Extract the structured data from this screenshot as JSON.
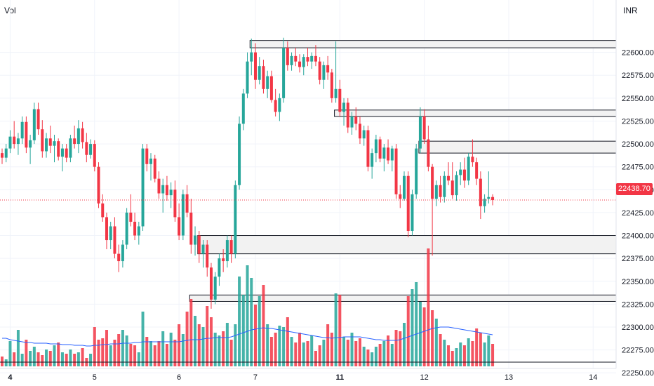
{
  "header": {
    "left_label": "Vol",
    "currency": "INR"
  },
  "last_price": {
    "value": 22438.7,
    "label": "22438.70"
  },
  "chart_data": {
    "type": "candlestick",
    "currency": "INR",
    "y_range": [
      22245,
      22625
    ],
    "y_ticks": [
      22250,
      22275,
      22300,
      22325,
      22350,
      22375,
      22400,
      22425,
      22450,
      22475,
      22500,
      22525,
      22550,
      22575,
      22600
    ],
    "x_ticks": [
      {
        "label": "4",
        "bold": true,
        "index": 2
      },
      {
        "label": "5",
        "bold": false,
        "index": 23
      },
      {
        "label": "6",
        "bold": false,
        "index": 44
      },
      {
        "label": "7",
        "bold": false,
        "index": 63
      },
      {
        "label": "11",
        "bold": true,
        "index": 84
      },
      {
        "label": "12",
        "bold": false,
        "index": 105
      },
      {
        "label": "13",
        "bold": false,
        "index": 126
      },
      {
        "label": "14",
        "bold": false,
        "index": 147
      }
    ],
    "zones": [
      {
        "start_index": 62,
        "low": 22605,
        "high": 22613
      },
      {
        "start_index": 83,
        "low": 22530,
        "high": 22537
      },
      {
        "start_index": 104,
        "low": 22490,
        "high": 22503
      },
      {
        "start_index": 49,
        "low": 22380,
        "high": 22400
      },
      {
        "start_index": 47,
        "low": 22328,
        "high": 22335
      }
    ],
    "candles": [
      [
        22490,
        22495,
        22478,
        22485
      ],
      [
        22485,
        22500,
        22480,
        22495
      ],
      [
        22495,
        22515,
        22490,
        22508
      ],
      [
        22508,
        22525,
        22495,
        22500
      ],
      [
        22500,
        22512,
        22488,
        22506
      ],
      [
        22506,
        22530,
        22500,
        22524
      ],
      [
        22524,
        22530,
        22490,
        22496
      ],
      [
        22496,
        22510,
        22478,
        22504
      ],
      [
        22504,
        22545,
        22500,
        22538
      ],
      [
        22538,
        22545,
        22510,
        22516
      ],
      [
        22516,
        22526,
        22485,
        22492
      ],
      [
        22492,
        22512,
        22485,
        22506
      ],
      [
        22506,
        22520,
        22490,
        22498
      ],
      [
        22498,
        22510,
        22480,
        22503
      ],
      [
        22503,
        22506,
        22482,
        22486
      ],
      [
        22486,
        22500,
        22470,
        22495
      ],
      [
        22495,
        22500,
        22480,
        22485
      ],
      [
        22485,
        22510,
        22480,
        22506
      ],
      [
        22506,
        22520,
        22495,
        22500
      ],
      [
        22500,
        22526,
        22490,
        22517
      ],
      [
        22517,
        22524,
        22495,
        22502
      ],
      [
        22502,
        22512,
        22480,
        22488
      ],
      [
        22488,
        22505,
        22484,
        22500
      ],
      [
        22500,
        22504,
        22470,
        22475
      ],
      [
        22475,
        22480,
        22430,
        22435
      ],
      [
        22435,
        22445,
        22415,
        22420
      ],
      [
        22420,
        22425,
        22385,
        22395
      ],
      [
        22395,
        22415,
        22385,
        22410
      ],
      [
        22410,
        22420,
        22375,
        22380
      ],
      [
        22380,
        22390,
        22360,
        22372
      ],
      [
        22372,
        22395,
        22365,
        22390
      ],
      [
        22390,
        22430,
        22385,
        22425
      ],
      [
        22425,
        22445,
        22410,
        22415
      ],
      [
        22415,
        22425,
        22395,
        22400
      ],
      [
        22400,
        22415,
        22390,
        22410
      ],
      [
        22410,
        22500,
        22405,
        22495
      ],
      [
        22495,
        22500,
        22470,
        22478
      ],
      [
        22478,
        22490,
        22460,
        22484
      ],
      [
        22484,
        22488,
        22458,
        22462
      ],
      [
        22462,
        22470,
        22440,
        22446
      ],
      [
        22446,
        22462,
        22425,
        22455
      ],
      [
        22455,
        22465,
        22438,
        22444
      ],
      [
        22444,
        22458,
        22430,
        22450
      ],
      [
        22450,
        22460,
        22415,
        22420
      ],
      [
        22420,
        22435,
        22395,
        22400
      ],
      [
        22400,
        22450,
        22395,
        22445
      ],
      [
        22445,
        22455,
        22420,
        22425
      ],
      [
        22425,
        22440,
        22380,
        22390
      ],
      [
        22390,
        22410,
        22378,
        22400
      ],
      [
        22400,
        22405,
        22370,
        22380
      ],
      [
        22380,
        22395,
        22365,
        22390
      ],
      [
        22390,
        22395,
        22355,
        22365
      ],
      [
        22365,
        22370,
        22320,
        22330
      ],
      [
        22330,
        22360,
        22325,
        22355
      ],
      [
        22355,
        22380,
        22345,
        22375
      ],
      [
        22375,
        22385,
        22360,
        22372
      ],
      [
        22372,
        22400,
        22365,
        22395
      ],
      [
        22395,
        22400,
        22370,
        22380
      ],
      [
        22380,
        22460,
        22375,
        22455
      ],
      [
        22455,
        22530,
        22450,
        22522
      ],
      [
        22522,
        22560,
        22515,
        22555
      ],
      [
        22555,
        22600,
        22550,
        22590
      ],
      [
        22590,
        22615,
        22575,
        22600
      ],
      [
        22600,
        22610,
        22560,
        22570
      ],
      [
        22570,
        22595,
        22565,
        22585
      ],
      [
        22585,
        22592,
        22555,
        22560
      ],
      [
        22560,
        22580,
        22550,
        22574
      ],
      [
        22574,
        22580,
        22545,
        22548
      ],
      [
        22548,
        22560,
        22530,
        22535
      ],
      [
        22535,
        22555,
        22525,
        22550
      ],
      [
        22550,
        22616,
        22545,
        22605
      ],
      [
        22605,
        22612,
        22580,
        22586
      ],
      [
        22586,
        22600,
        22580,
        22596
      ],
      [
        22596,
        22605,
        22585,
        22590
      ],
      [
        22590,
        22598,
        22578,
        22584
      ],
      [
        22584,
        22598,
        22575,
        22595
      ],
      [
        22595,
        22605,
        22585,
        22590
      ],
      [
        22590,
        22600,
        22582,
        22596
      ],
      [
        22596,
        22608,
        22585,
        22590
      ],
      [
        22590,
        22595,
        22565,
        22570
      ],
      [
        22570,
        22590,
        22560,
        22586
      ],
      [
        22586,
        22596,
        22570,
        22578
      ],
      [
        22578,
        22582,
        22545,
        22550
      ],
      [
        22550,
        22612,
        22545,
        22560
      ],
      [
        22560,
        22570,
        22530,
        22535
      ],
      [
        22535,
        22550,
        22520,
        22545
      ],
      [
        22545,
        22550,
        22512,
        22518
      ],
      [
        22518,
        22535,
        22510,
        22530
      ],
      [
        22530,
        22540,
        22515,
        22522
      ],
      [
        22522,
        22530,
        22500,
        22506
      ],
      [
        22506,
        22520,
        22498,
        22515
      ],
      [
        22515,
        22520,
        22470,
        22475
      ],
      [
        22475,
        22495,
        22462,
        22490
      ],
      [
        22490,
        22510,
        22480,
        22505
      ],
      [
        22505,
        22508,
        22480,
        22484
      ],
      [
        22484,
        22500,
        22470,
        22496
      ],
      [
        22496,
        22505,
        22478,
        22482
      ],
      [
        22482,
        22498,
        22470,
        22495
      ],
      [
        22495,
        22500,
        22440,
        22445
      ],
      [
        22445,
        22455,
        22430,
        22440
      ],
      [
        22440,
        22470,
        22438,
        22465
      ],
      [
        22465,
        22470,
        22398,
        22405
      ],
      [
        22405,
        22450,
        22400,
        22445
      ],
      [
        22445,
        22500,
        22440,
        22495
      ],
      [
        22495,
        22540,
        22490,
        22530
      ],
      [
        22530,
        22538,
        22500,
        22505
      ],
      [
        22505,
        22520,
        22470,
        22475
      ],
      [
        22475,
        22478,
        22378,
        22440
      ],
      [
        22440,
        22460,
        22432,
        22455
      ],
      [
        22455,
        22465,
        22436,
        22442
      ],
      [
        22442,
        22470,
        22436,
        22465
      ],
      [
        22465,
        22480,
        22455,
        22460
      ],
      [
        22460,
        22480,
        22440,
        22444
      ],
      [
        22444,
        22470,
        22438,
        22466
      ],
      [
        22466,
        22480,
        22455,
        22472
      ],
      [
        22472,
        22485,
        22452,
        22460
      ],
      [
        22460,
        22490,
        22455,
        22486
      ],
      [
        22486,
        22505,
        22475,
        22480
      ],
      [
        22480,
        22485,
        22455,
        22462
      ],
      [
        22462,
        22470,
        22418,
        22432
      ],
      [
        22432,
        22445,
        22425,
        22440
      ],
      [
        22440,
        22470,
        22435,
        22442
      ],
      [
        22442,
        22445,
        22433,
        22438.7
      ]
    ],
    "volumes": [
      14,
      10,
      36,
      20,
      52,
      18,
      38,
      22,
      28,
      20,
      16,
      24,
      22,
      30,
      34,
      20,
      18,
      24,
      18,
      20,
      26,
      12,
      18,
      56,
      38,
      40,
      52,
      30,
      38,
      46,
      52,
      44,
      32,
      30,
      20,
      78,
      42,
      36,
      30,
      36,
      50,
      32,
      48,
      38,
      60,
      46,
      78,
      96,
      72,
      60,
      56,
      86,
      70,
      48,
      44,
      50,
      62,
      38,
      60,
      128,
      102,
      144,
      126,
      88,
      100,
      116,
      60,
      42,
      48,
      58,
      56,
      70,
      42,
      34,
      48,
      34,
      36,
      44,
      22,
      30,
      38,
      60,
      48,
      104,
      102,
      42,
      38,
      48,
      36,
      40,
      28,
      24,
      20,
      28,
      32,
      36,
      44,
      32,
      52,
      50,
      62,
      100,
      110,
      120,
      92,
      84,
      168,
      80,
      68,
      46,
      38,
      30,
      22,
      26,
      34,
      30,
      40,
      36,
      54,
      48,
      34,
      44,
      32
    ],
    "volume_ma": [
      40,
      40,
      38,
      37,
      36,
      35,
      34,
      34,
      33,
      33,
      33,
      33,
      32,
      32,
      32,
      31,
      31,
      31,
      30,
      30,
      30,
      29,
      29,
      30,
      30,
      31,
      31,
      32,
      32,
      32,
      33,
      33,
      33,
      34,
      34,
      35,
      35,
      35,
      35,
      35,
      35,
      35,
      35,
      35,
      35,
      36,
      37,
      38,
      38,
      38,
      39,
      40,
      40,
      41,
      41,
      41,
      41,
      42,
      44,
      46,
      48,
      50,
      52,
      53,
      54,
      55,
      54,
      54,
      53,
      52,
      51,
      50,
      49,
      48,
      47,
      46,
      45,
      44,
      43,
      42,
      41,
      41,
      40,
      41,
      41,
      42,
      42,
      42,
      42,
      42,
      41,
      40,
      39,
      38,
      38,
      37,
      37,
      37,
      37,
      38,
      40,
      42,
      44,
      46,
      48,
      50,
      52,
      54,
      55,
      56,
      56,
      56,
      55,
      54,
      53,
      52,
      51,
      50,
      49,
      48,
      47,
      46,
      45
    ]
  }
}
